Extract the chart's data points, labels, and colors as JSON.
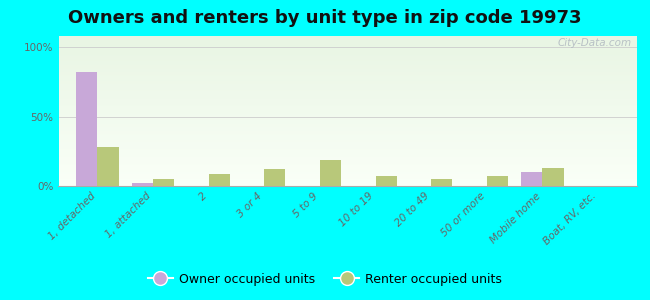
{
  "title": "Owners and renters by unit type in zip code 19973",
  "categories": [
    "1, detached",
    "1, attached",
    "2",
    "3 or 4",
    "5 to 9",
    "10 to 19",
    "20 to 49",
    "50 or more",
    "Mobile home",
    "Boat, RV, etc."
  ],
  "owner_values": [
    82,
    2,
    0,
    0,
    0,
    0,
    0,
    0,
    10,
    0
  ],
  "renter_values": [
    28,
    5,
    9,
    12,
    19,
    7,
    5,
    7,
    13,
    0
  ],
  "owner_color": "#c8a8d8",
  "renter_color": "#b8c87a",
  "background_color": "#00ffff",
  "ylabel_ticks": [
    "0%",
    "50%",
    "100%"
  ],
  "ytick_vals": [
    0,
    50,
    100
  ],
  "ylim": [
    0,
    108
  ],
  "bar_width": 0.38,
  "title_fontsize": 13,
  "tick_fontsize": 7.5,
  "legend_fontsize": 9,
  "watermark": "City-Data.com"
}
